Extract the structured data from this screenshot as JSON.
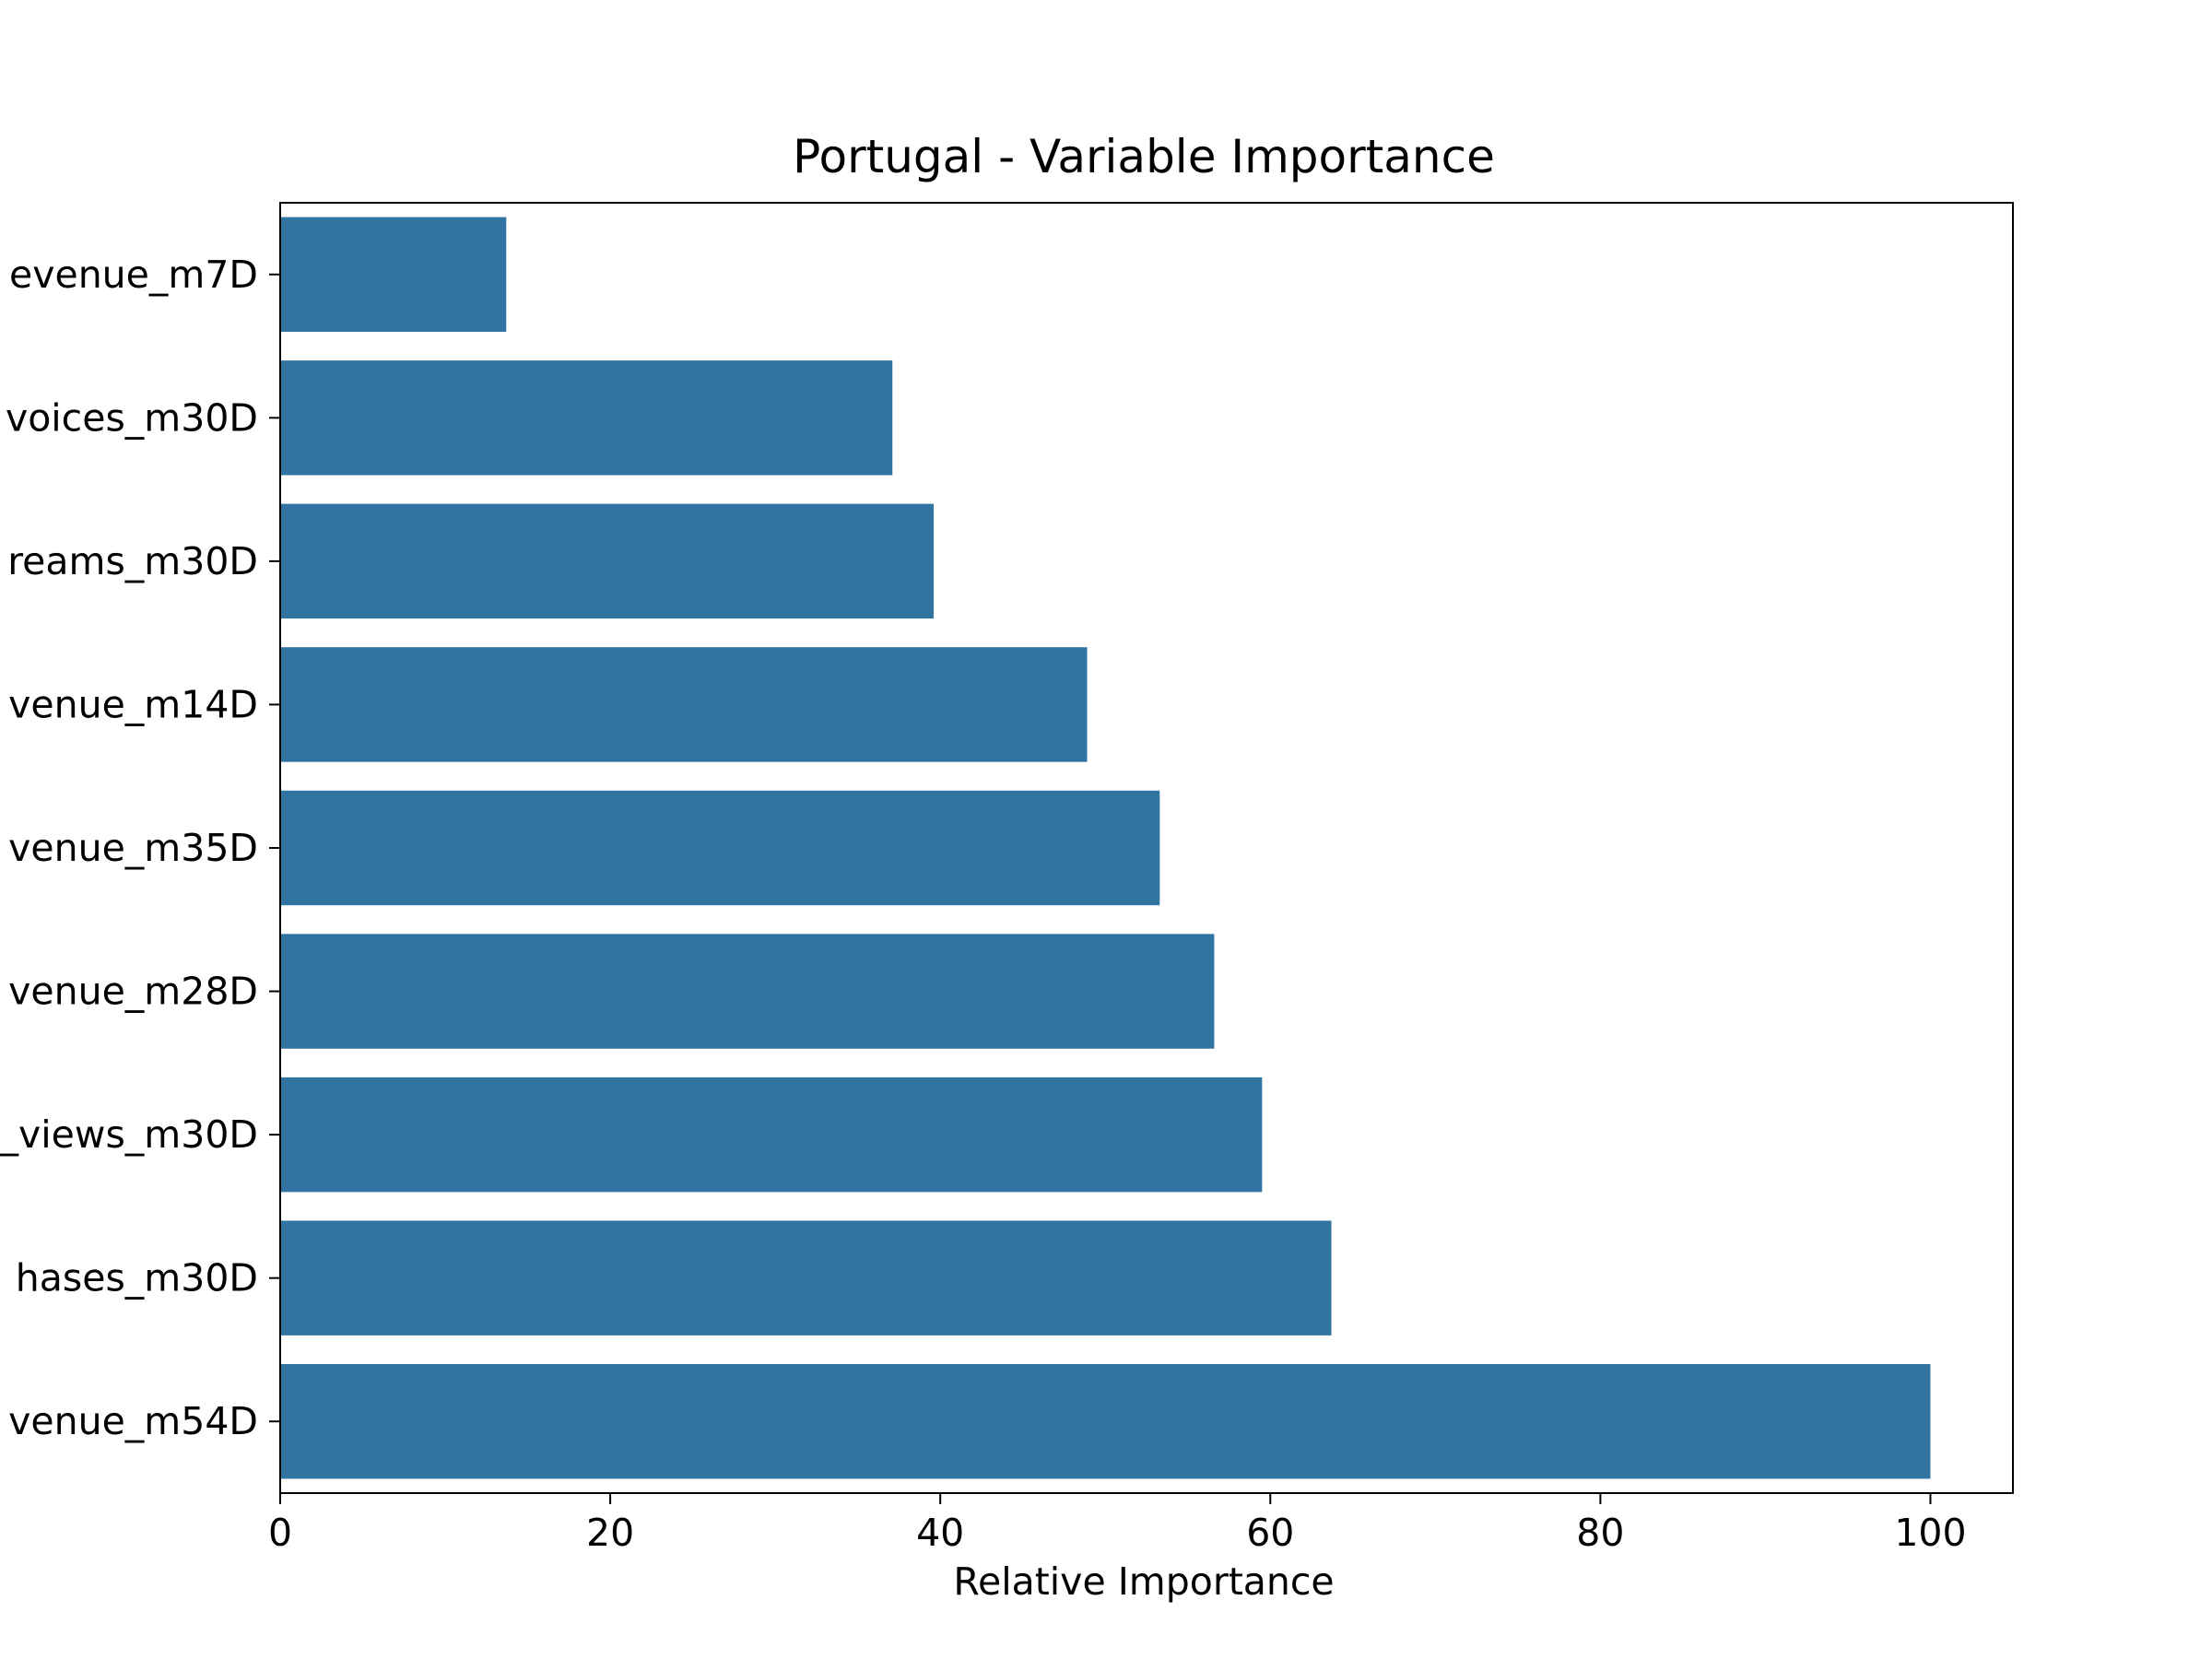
{
  "chart_data": {
    "type": "bar",
    "orientation": "horizontal",
    "title": "Portugal - Variable Importance",
    "xlabel": "Relative Importance",
    "ylabel": "",
    "categories": [
      "evenue_m7D",
      "voices_m30D",
      "reams_m30D",
      "venue_m14D",
      "venue_m35D",
      "venue_m28D",
      "_views_m30D",
      "hases_m30D",
      "venue_m54D"
    ],
    "values": [
      13.7,
      37.1,
      39.6,
      48.9,
      53.3,
      56.6,
      59.5,
      63.7,
      100
    ],
    "xlim": [
      0,
      105
    ],
    "xticks": [
      0,
      20,
      40,
      60,
      80,
      100
    ],
    "grid": false,
    "colors": {
      "bar": "#3274a1",
      "axis": "#000000",
      "background": "#ffffff"
    }
  }
}
